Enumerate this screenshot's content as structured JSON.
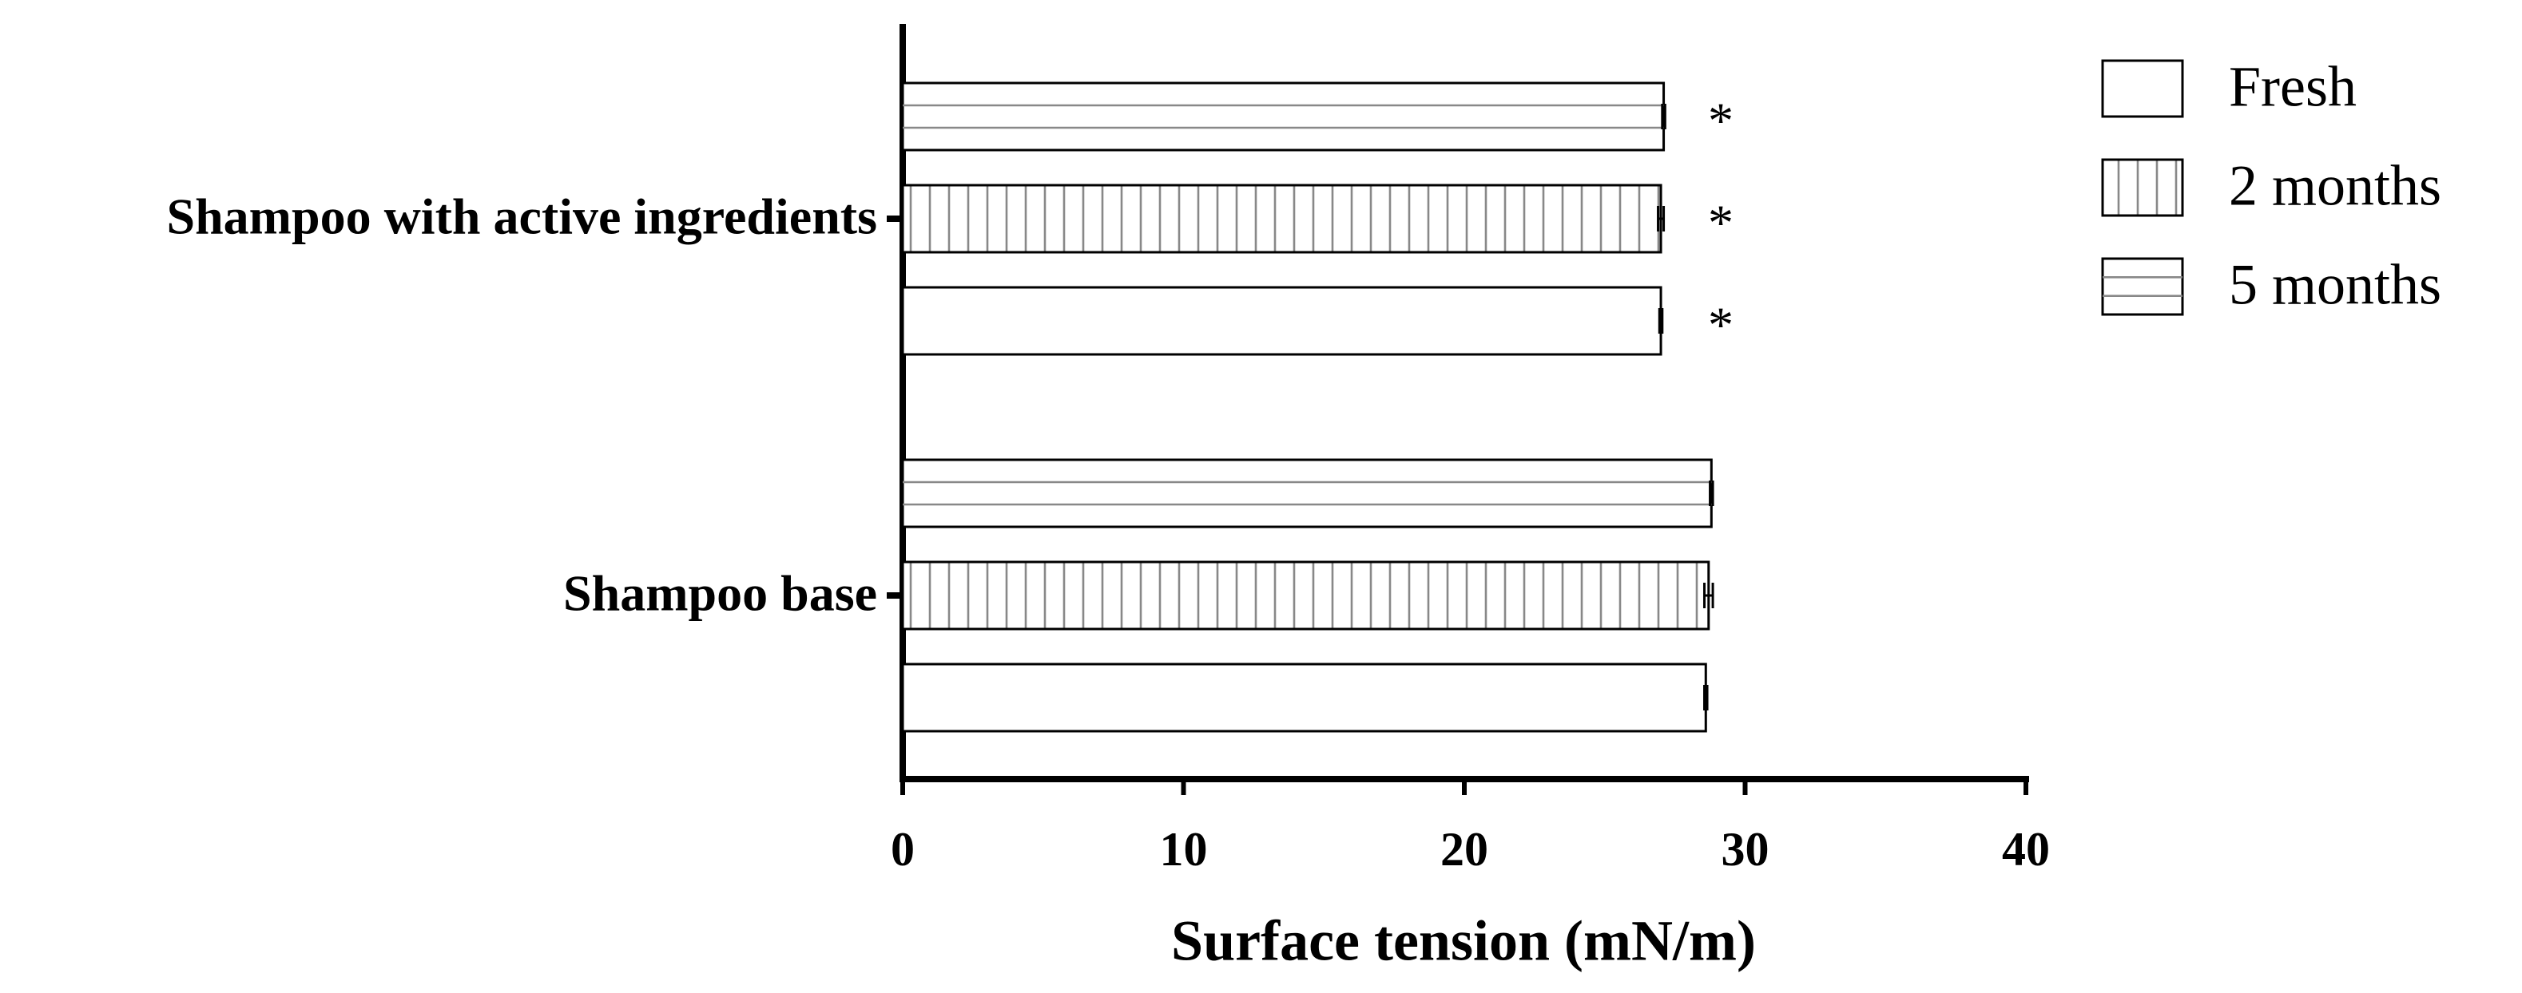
{
  "chart_data": {
    "type": "barh",
    "xlabel": "Surface tension (mN/m)",
    "categories": [
      "Shampoo base",
      "Shampoo with active ingredients"
    ],
    "series": [
      {
        "name": "Fresh",
        "color": "#ffffff",
        "pattern": "none",
        "values": [
          28.6,
          27.0
        ],
        "errors": [
          0.05,
          0.05
        ],
        "annotations": [
          null,
          "*"
        ]
      },
      {
        "name": "2 months",
        "color": "#ffffff",
        "pattern": "vertical",
        "values": [
          28.7,
          27.0
        ],
        "errors": [
          0.15,
          0.1
        ],
        "annotations": [
          null,
          "*"
        ]
      },
      {
        "name": "5 months",
        "color": "#ffffff",
        "pattern": "horizontal",
        "values": [
          28.8,
          27.1
        ],
        "errors": [
          0.05,
          0.05
        ],
        "annotations": [
          null,
          "*"
        ]
      }
    ],
    "xlim": [
      0,
      40
    ],
    "xticks": [
      0,
      10,
      20,
      30,
      40
    ],
    "grid": false,
    "legend": "upper right"
  }
}
